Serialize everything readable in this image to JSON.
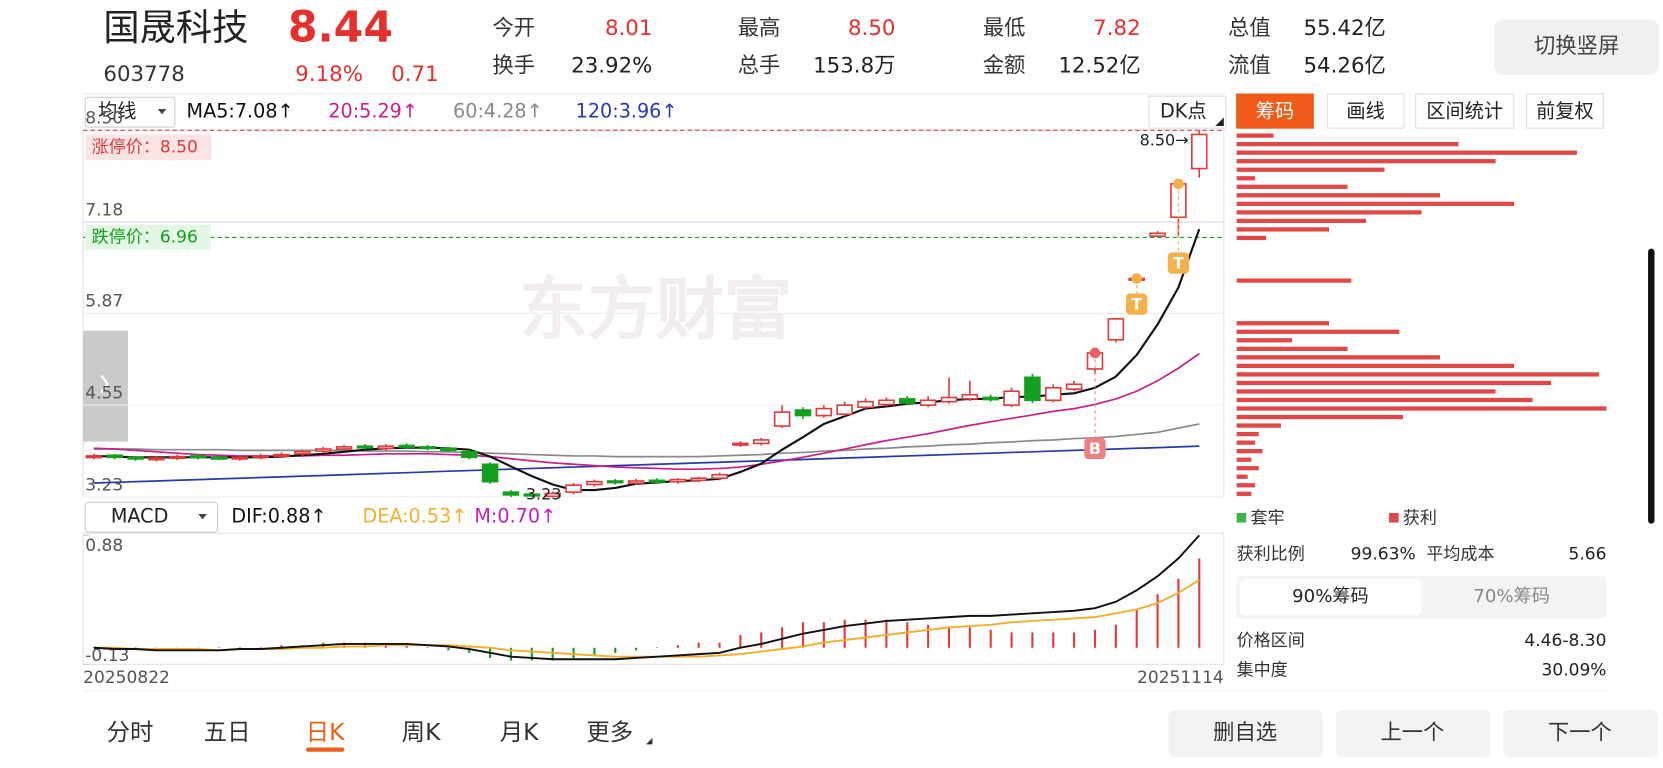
{
  "header": {
    "name": "国晟科技",
    "price": "8.44",
    "code": "603778",
    "change_pct": "9.18%",
    "change": "0.71",
    "stats": [
      {
        "label": "今开",
        "value": "8.01"
      },
      {
        "label": "最高",
        "value": "8.50"
      },
      {
        "label": "最低",
        "value": "7.82"
      },
      {
        "label": "总值",
        "value": "55.42亿"
      },
      {
        "label": "换手",
        "value": "23.92%"
      },
      {
        "label": "总手",
        "value": "153.8万"
      },
      {
        "label": "金额",
        "value": "12.52亿"
      },
      {
        "label": "流值",
        "value": "54.26亿"
      }
    ],
    "button": "切换竖屏"
  },
  "toolbar": {
    "indicator": "均线",
    "dk": "DK点",
    "tabs": [
      "筹码",
      "画线",
      "区间统计",
      "前复权"
    ]
  },
  "kline": {
    "up_color": "#e03a3a",
    "down_color": "#13a01e",
    "ylim": [
      3.23,
      8.5
    ],
    "yticks": [
      {
        "value": 8.5,
        "label": "8.50"
      },
      7.18,
      5.87,
      4.55,
      3.23
    ],
    "limit_up": {
      "label": "涨停价：8.50",
      "value": 8.5
    },
    "limit_down": {
      "label": "跌停价：6.96",
      "value": 6.96
    },
    "high_note": "8.50→",
    "low_note": "3.23",
    "watermark": "东方财富",
    "badges": [
      "B",
      "T",
      "T"
    ],
    "open": [
      3.8,
      3.83,
      3.8,
      3.77,
      3.79,
      3.82,
      3.8,
      3.78,
      3.8,
      3.82,
      3.85,
      3.89,
      3.92,
      3.96,
      3.93,
      3.97,
      3.95,
      3.93,
      3.88,
      3.7,
      3.3,
      3.27,
      3.24,
      3.3,
      3.41,
      3.46,
      3.43,
      3.47,
      3.45,
      3.47,
      3.5,
      3.98,
      4.0,
      4.25,
      4.48,
      4.4,
      4.42,
      4.52,
      4.56,
      4.64,
      4.55,
      4.6,
      4.64,
      4.66,
      4.55,
      4.95,
      4.62,
      4.78,
      5.07,
      5.49,
      6.37,
      6.98,
      7.25,
      7.95
    ],
    "close": [
      3.82,
      3.8,
      3.78,
      3.79,
      3.81,
      3.8,
      3.79,
      3.8,
      3.82,
      3.84,
      3.88,
      3.92,
      3.95,
      3.94,
      3.96,
      3.95,
      3.93,
      3.9,
      3.8,
      3.45,
      3.26,
      3.25,
      3.28,
      3.4,
      3.45,
      3.44,
      3.46,
      3.45,
      3.48,
      3.5,
      3.55,
      4.0,
      4.05,
      4.45,
      4.4,
      4.5,
      4.55,
      4.6,
      4.62,
      4.58,
      4.62,
      4.66,
      4.7,
      4.63,
      4.75,
      4.62,
      4.8,
      4.85,
      5.3,
      5.79,
      6.37,
      7.02,
      7.73,
      8.44
    ],
    "high": [
      3.85,
      3.85,
      3.82,
      3.82,
      3.84,
      3.85,
      3.82,
      3.82,
      3.85,
      3.87,
      3.91,
      3.95,
      3.98,
      3.99,
      3.99,
      4.0,
      3.98,
      3.95,
      3.91,
      3.73,
      3.33,
      3.3,
      3.31,
      3.43,
      3.48,
      3.49,
      3.49,
      3.5,
      3.5,
      3.52,
      3.58,
      4.03,
      4.08,
      4.55,
      4.52,
      4.55,
      4.6,
      4.65,
      4.66,
      4.68,
      4.68,
      4.95,
      4.9,
      4.7,
      4.8,
      5.0,
      4.85,
      4.9,
      5.35,
      5.8,
      6.37,
      7.05,
      7.75,
      8.5
    ],
    "low": [
      3.77,
      3.77,
      3.75,
      3.74,
      3.76,
      3.77,
      3.76,
      3.75,
      3.77,
      3.79,
      3.82,
      3.86,
      3.89,
      3.91,
      3.9,
      3.92,
      3.9,
      3.87,
      3.77,
      3.42,
      3.23,
      3.23,
      3.24,
      3.27,
      3.38,
      3.41,
      3.4,
      3.42,
      3.42,
      3.44,
      3.47,
      3.95,
      3.97,
      4.22,
      4.35,
      4.37,
      4.39,
      4.49,
      4.53,
      4.55,
      4.52,
      4.57,
      4.61,
      4.6,
      4.52,
      4.58,
      4.59,
      4.75,
      5.0,
      5.45,
      6.37,
      6.96,
      6.96,
      7.82
    ],
    "dates": [
      "20250822",
      "20251114"
    ]
  },
  "ma": [
    {
      "name": "MA5:7.08↑",
      "color": "#111111",
      "values": [
        3.82,
        3.81,
        3.8,
        3.8,
        3.8,
        3.8,
        3.8,
        3.8,
        3.8,
        3.81,
        3.83,
        3.85,
        3.88,
        3.91,
        3.93,
        3.94,
        3.94,
        3.93,
        3.91,
        3.81,
        3.67,
        3.53,
        3.41,
        3.33,
        3.33,
        3.36,
        3.42,
        3.44,
        3.46,
        3.47,
        3.49,
        3.59,
        3.71,
        3.91,
        4.09,
        4.28,
        4.39,
        4.5,
        4.53,
        4.57,
        4.59,
        4.62,
        4.64,
        4.64,
        4.67,
        4.67,
        4.7,
        4.72,
        4.8,
        4.96,
        5.27,
        5.71,
        6.24,
        7.08
      ]
    },
    {
      "name": "20:5.29↑",
      "color": "#c8208c",
      "values": [
        3.93,
        3.92,
        3.9,
        3.88,
        3.86,
        3.84,
        3.83,
        3.82,
        3.82,
        3.82,
        3.82,
        3.83,
        3.83,
        3.84,
        3.85,
        3.85,
        3.85,
        3.84,
        3.83,
        3.81,
        3.78,
        3.75,
        3.72,
        3.7,
        3.68,
        3.66,
        3.65,
        3.64,
        3.63,
        3.63,
        3.64,
        3.66,
        3.7,
        3.75,
        3.8,
        3.86,
        3.92,
        3.98,
        4.04,
        4.09,
        4.14,
        4.2,
        4.26,
        4.31,
        4.36,
        4.41,
        4.46,
        4.5,
        4.56,
        4.64,
        4.75,
        4.9,
        5.08,
        5.29
      ]
    },
    {
      "name": "60:4.28↑",
      "color": "#8a8a8a",
      "values": [
        3.92,
        3.92,
        3.92,
        3.91,
        3.91,
        3.91,
        3.91,
        3.9,
        3.9,
        3.9,
        3.9,
        3.9,
        3.9,
        3.89,
        3.89,
        3.89,
        3.88,
        3.88,
        3.87,
        3.86,
        3.85,
        3.84,
        3.83,
        3.82,
        3.82,
        3.81,
        3.81,
        3.81,
        3.81,
        3.81,
        3.82,
        3.83,
        3.84,
        3.86,
        3.87,
        3.89,
        3.9,
        3.92,
        3.93,
        3.95,
        3.96,
        3.98,
        3.99,
        4.01,
        4.02,
        4.04,
        4.05,
        4.07,
        4.08,
        4.1,
        4.13,
        4.16,
        4.22,
        4.28
      ]
    },
    {
      "name": "120:3.96↑",
      "color": "#2a3aa8",
      "values": [
        3.43,
        3.44,
        3.45,
        3.46,
        3.47,
        3.48,
        3.49,
        3.5,
        3.51,
        3.52,
        3.53,
        3.54,
        3.55,
        3.56,
        3.57,
        3.58,
        3.59,
        3.6,
        3.61,
        3.62,
        3.63,
        3.64,
        3.65,
        3.66,
        3.67,
        3.68,
        3.69,
        3.7,
        3.71,
        3.72,
        3.73,
        3.74,
        3.75,
        3.76,
        3.77,
        3.78,
        3.79,
        3.8,
        3.81,
        3.82,
        3.83,
        3.84,
        3.85,
        3.86,
        3.87,
        3.88,
        3.89,
        3.9,
        3.91,
        3.92,
        3.93,
        3.94,
        3.95,
        3.96
      ]
    }
  ],
  "macd": {
    "indicator": "MACD",
    "ylim": [
      -0.13,
      0.88
    ],
    "yticks": [
      0.88,
      -0.13
    ],
    "dif": {
      "name": "DIF:0.88↑",
      "color": "#111111",
      "values": [
        0.0,
        -0.01,
        -0.01,
        -0.02,
        -0.02,
        -0.02,
        -0.02,
        -0.01,
        -0.01,
        0.0,
        0.01,
        0.02,
        0.03,
        0.03,
        0.03,
        0.03,
        0.02,
        0.01,
        -0.01,
        -0.04,
        -0.07,
        -0.08,
        -0.09,
        -0.09,
        -0.09,
        -0.09,
        -0.08,
        -0.07,
        -0.06,
        -0.05,
        -0.04,
        0.0,
        0.03,
        0.07,
        0.11,
        0.14,
        0.17,
        0.19,
        0.21,
        0.22,
        0.23,
        0.24,
        0.25,
        0.25,
        0.26,
        0.27,
        0.28,
        0.29,
        0.31,
        0.36,
        0.45,
        0.56,
        0.7,
        0.88
      ]
    },
    "dea": {
      "name": "DEA:0.53↑",
      "color": "#f0b030",
      "values": [
        0.0,
        0.0,
        -0.01,
        -0.01,
        -0.01,
        -0.01,
        -0.02,
        -0.01,
        -0.01,
        -0.01,
        0.0,
        0.0,
        0.01,
        0.01,
        0.02,
        0.02,
        0.02,
        0.02,
        0.01,
        0.0,
        -0.02,
        -0.03,
        -0.04,
        -0.05,
        -0.06,
        -0.07,
        -0.07,
        -0.07,
        -0.07,
        -0.07,
        -0.06,
        -0.05,
        -0.03,
        -0.01,
        0.01,
        0.04,
        0.06,
        0.08,
        0.1,
        0.12,
        0.14,
        0.16,
        0.17,
        0.18,
        0.2,
        0.21,
        0.22,
        0.23,
        0.24,
        0.27,
        0.3,
        0.35,
        0.43,
        0.53
      ]
    },
    "m": {
      "name": "M:0.70↑",
      "color": "#c020c0",
      "values": [
        0,
        -0.02,
        0,
        -0.02,
        -0.02,
        -0.02,
        0,
        0,
        0,
        0.02,
        0.02,
        0.04,
        0.04,
        0.04,
        0.02,
        0.02,
        0,
        -0.02,
        -0.04,
        -0.08,
        -0.1,
        -0.1,
        -0.1,
        -0.08,
        -0.06,
        -0.04,
        -0.02,
        0,
        0.02,
        0.04,
        0.04,
        0.1,
        0.12,
        0.16,
        0.2,
        0.2,
        0.22,
        0.22,
        0.22,
        0.2,
        0.18,
        0.16,
        0.16,
        0.14,
        0.12,
        0.12,
        0.12,
        0.12,
        0.14,
        0.18,
        0.3,
        0.42,
        0.54,
        0.7
      ]
    }
  },
  "chips": {
    "color": "#e04848",
    "loss_label": "套牢",
    "loss_color": "#3cb44b",
    "profit_label": "获利",
    "values": [
      10,
      60,
      92,
      70,
      40,
      5,
      30,
      55,
      75,
      50,
      35,
      25,
      8,
      0,
      0,
      0,
      0,
      31,
      0,
      0,
      0,
      0,
      25,
      44,
      15,
      30,
      55,
      75,
      98,
      85,
      70,
      80,
      100,
      45,
      12,
      6,
      5,
      7,
      4,
      6,
      3,
      5,
      4
    ],
    "stats": [
      {
        "label": "获利比例",
        "value": "99.63%"
      },
      {
        "label": "平均成本",
        "value": "5.66"
      }
    ],
    "tabs": [
      "90%筹码",
      "70%筹码"
    ],
    "details": [
      {
        "label": "价格区间",
        "value": "4.46-8.30"
      },
      {
        "label": "集中度",
        "value": "30.09%"
      }
    ]
  },
  "footer": {
    "tabs": [
      "分时",
      "五日",
      "日K",
      "周K",
      "月K",
      "更多"
    ],
    "buttons": [
      "删自选",
      "上一个",
      "下一个"
    ]
  }
}
